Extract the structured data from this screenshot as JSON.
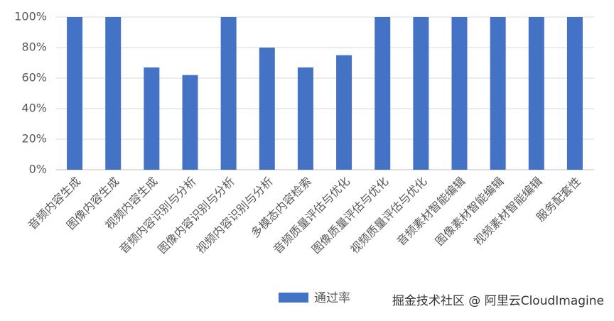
{
  "chart_data": {
    "type": "bar",
    "categories": [
      "音频内容生成",
      "图像内容生成",
      "视频内容生成",
      "音频内容识别与分析",
      "图像内容识别与分析",
      "视频内容识别与分析",
      "多模态内容检索",
      "音频质量评估与优化",
      "图像质量评估与优化",
      "视频质量评估与优化",
      "音频素材智能编辑",
      "图像素材智能编辑",
      "视频素材智能编辑",
      "服务配套性"
    ],
    "series": [
      {
        "name": "通过率",
        "color": "#4472c4",
        "values": [
          100,
          100,
          67,
          62,
          100,
          80,
          67,
          75,
          100,
          100,
          100,
          100,
          100,
          100
        ]
      }
    ],
    "ylim": [
      0,
      100
    ],
    "yticks": [
      {
        "value": 0,
        "label": "0%"
      },
      {
        "value": 20,
        "label": "20%"
      },
      {
        "value": 40,
        "label": "40%"
      },
      {
        "value": 60,
        "label": "60%"
      },
      {
        "value": 80,
        "label": "80%"
      },
      {
        "value": 100,
        "label": "100%"
      }
    ],
    "grid": true,
    "legend": "bottom",
    "watermark": "掘金技术社区 @ 阿里云CloudImagine"
  }
}
